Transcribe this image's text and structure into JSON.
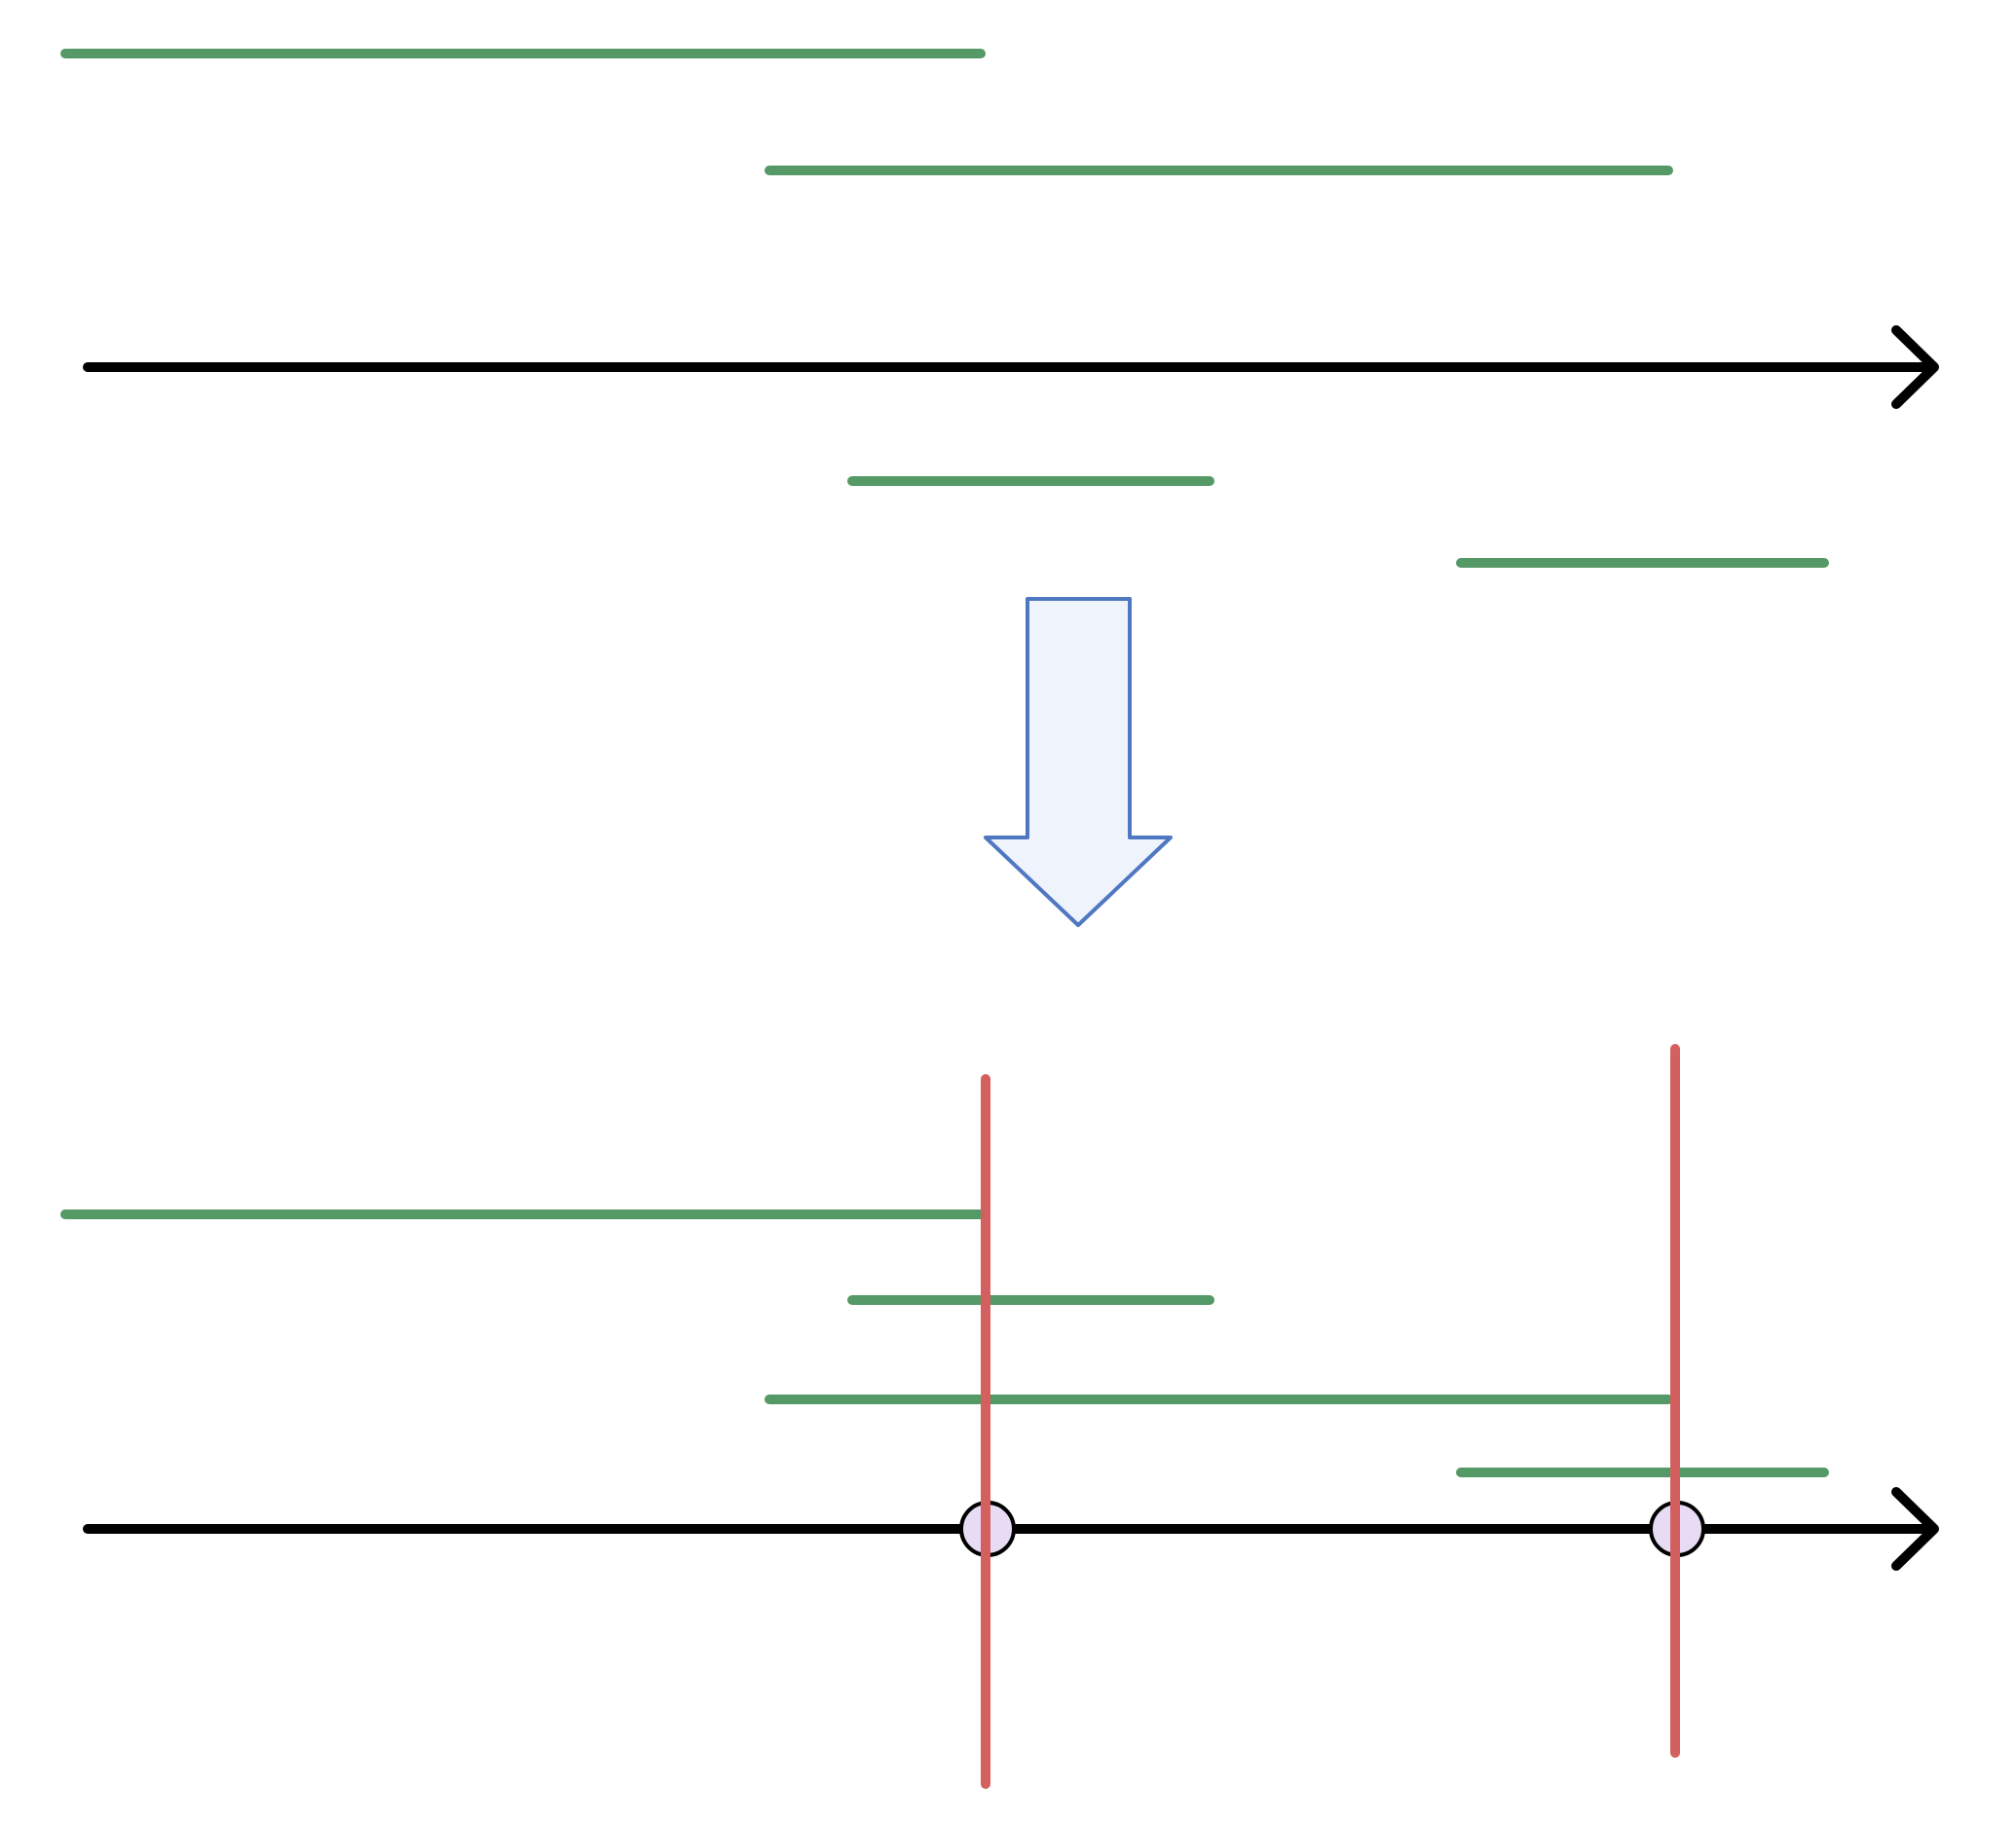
{
  "colors": {
    "interval": "#559966",
    "axis": "#000000",
    "cut": "#d45f5f",
    "point_fill": "#e8dcf4",
    "point_stroke": "#000000",
    "arrow_fill": "#eef3fc",
    "arrow_stroke": "#5077c2",
    "background": "#ffffff"
  },
  "diagram": {
    "top_panel": {
      "intervals_count": 4
    },
    "transition_arrow": {
      "direction": "down"
    },
    "bottom_panel": {
      "intervals_count": 4,
      "cut_lines_count": 2,
      "marked_points_count": 2
    }
  }
}
